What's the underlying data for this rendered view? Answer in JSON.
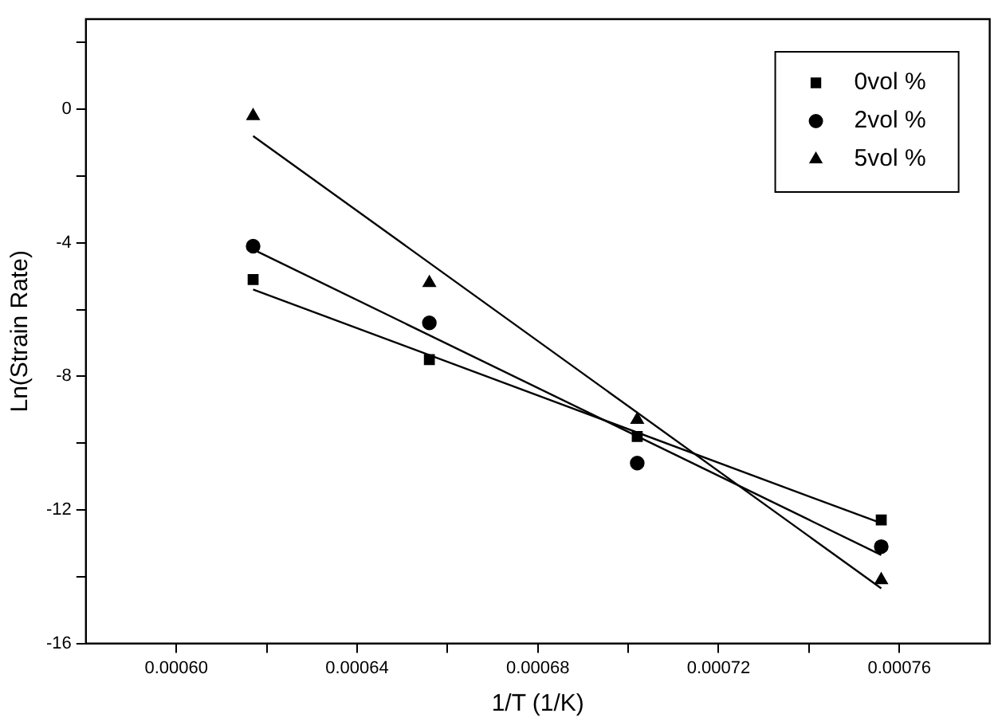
{
  "chart_data": {
    "type": "scatter",
    "xlabel": "1/T (1/K)",
    "ylabel": "Ln(Strain Rate)",
    "xlim": [
      0.00058,
      0.00078
    ],
    "ylim": [
      -16,
      2.7
    ],
    "xticks": [
      {
        "value": 0.0006,
        "label": "0.00060"
      },
      {
        "value": 0.00062,
        "label": null
      },
      {
        "value": 0.00064,
        "label": "0.00064"
      },
      {
        "value": 0.00066,
        "label": null
      },
      {
        "value": 0.00068,
        "label": "0.00068"
      },
      {
        "value": 0.0007,
        "label": null
      },
      {
        "value": 0.00072,
        "label": "0.00072"
      },
      {
        "value": 0.00074,
        "label": null
      },
      {
        "value": 0.00076,
        "label": "0.00076"
      }
    ],
    "yticks": [
      -16,
      {
        "value": -14,
        "label": null
      },
      -12,
      {
        "value": -10,
        "label": null
      },
      -8,
      {
        "value": -6,
        "label": null
      },
      -4,
      {
        "value": -2,
        "label": null
      },
      0,
      {
        "value": 2,
        "label": null
      }
    ],
    "grid": false,
    "legend": "top right",
    "series": [
      {
        "name": "0vol %",
        "color": "#000000",
        "marker": "square",
        "x": [
          0.000617,
          0.000656,
          0.000702,
          0.000756
        ],
        "values": [
          -5.1,
          -7.5,
          -9.8,
          -12.3
        ]
      },
      {
        "name": "2vol %",
        "color": "#000000",
        "marker": "circle",
        "x": [
          0.000617,
          0.000656,
          0.000702,
          0.000756
        ],
        "values": [
          -4.1,
          -6.4,
          -10.6,
          -13.1
        ]
      },
      {
        "name": "5vol %",
        "color": "#000000",
        "marker": "triangle",
        "x": [
          0.000617,
          0.000656,
          0.000702,
          0.000756
        ],
        "values": [
          -0.2,
          -5.2,
          -9.3,
          -14.1
        ]
      },
      {
        "type": "line",
        "color": "#000000",
        "marker": "none",
        "x": [
          0.000617,
          0.000756
        ],
        "values": [
          -5.4,
          -12.4
        ]
      },
      {
        "type": "line",
        "color": "#000000",
        "marker": "none",
        "x": [
          0.000617,
          0.000756
        ],
        "values": [
          -4.2,
          -13.35
        ]
      },
      {
        "type": "line",
        "color": "#000000",
        "marker": "none",
        "x": [
          0.000617,
          0.000756
        ],
        "values": [
          -0.8,
          -14.35
        ]
      }
    ]
  }
}
